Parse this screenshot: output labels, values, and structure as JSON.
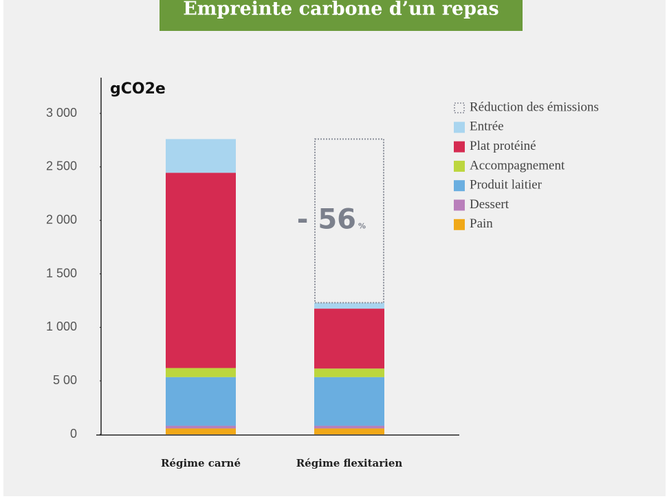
{
  "chart_data": {
    "type": "stacked_bar",
    "title": "Empreinte carbone d’un repas",
    "y_label": "gCO2e",
    "categories": [
      "Régime carné",
      "Régime flexitarien"
    ],
    "series": [
      {
        "name": "Pain",
        "color": "#f0a818",
        "values": [
          55,
          55
        ]
      },
      {
        "name": "Dessert",
        "color": "#b97fbb",
        "values": [
          25,
          25
        ]
      },
      {
        "name": "Produit laitier",
        "color": "#6aaee0",
        "values": [
          455,
          455
        ]
      },
      {
        "name": "Accompagnement",
        "color": "#bcd63e",
        "values": [
          85,
          80
        ]
      },
      {
        "name": "Plat protéiné",
        "color": "#d52b51",
        "values": [
          1825,
          560
        ]
      },
      {
        "name": "Entrée",
        "color": "#a9d5ef",
        "values": [
          315,
          55
        ]
      },
      {
        "name": "Réduction des émissions",
        "color": "#8a8e99",
        "style": "dotted",
        "values": [
          null,
          1530
        ]
      }
    ],
    "annotation": "- 56",
    "annotation_unit": "%",
    "ylim": [
      0,
      3000
    ],
    "yticks": [
      0,
      {
        "value": 500,
        "label": "5 00"
      },
      {
        "value": 1000,
        "label": "1 000"
      },
      {
        "value": 1500,
        "label": "1 500"
      },
      {
        "value": 2000,
        "label": "2 000"
      },
      {
        "value": 2500,
        "label": "2 500"
      },
      {
        "value": 3000,
        "label": "3 000"
      }
    ],
    "legend": "right"
  }
}
